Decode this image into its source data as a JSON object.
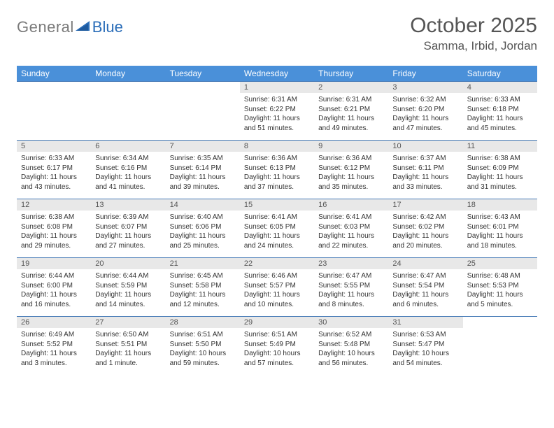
{
  "logo": {
    "word1": "General",
    "word2": "Blue"
  },
  "title": "October 2025",
  "location": "Samma, Irbid, Jordan",
  "colors": {
    "header_bg": "#4a90d9",
    "header_text": "#ffffff",
    "daynum_bg": "#e8e8e8",
    "row_border": "#4a7db8",
    "logo_gray": "#7a7a7a",
    "logo_blue": "#2a6db8"
  },
  "day_headers": [
    "Sunday",
    "Monday",
    "Tuesday",
    "Wednesday",
    "Thursday",
    "Friday",
    "Saturday"
  ],
  "weeks": [
    [
      {
        "n": "",
        "lines": []
      },
      {
        "n": "",
        "lines": []
      },
      {
        "n": "",
        "lines": []
      },
      {
        "n": "1",
        "lines": [
          "Sunrise: 6:31 AM",
          "Sunset: 6:22 PM",
          "Daylight: 11 hours",
          "and 51 minutes."
        ]
      },
      {
        "n": "2",
        "lines": [
          "Sunrise: 6:31 AM",
          "Sunset: 6:21 PM",
          "Daylight: 11 hours",
          "and 49 minutes."
        ]
      },
      {
        "n": "3",
        "lines": [
          "Sunrise: 6:32 AM",
          "Sunset: 6:20 PM",
          "Daylight: 11 hours",
          "and 47 minutes."
        ]
      },
      {
        "n": "4",
        "lines": [
          "Sunrise: 6:33 AM",
          "Sunset: 6:18 PM",
          "Daylight: 11 hours",
          "and 45 minutes."
        ]
      }
    ],
    [
      {
        "n": "5",
        "lines": [
          "Sunrise: 6:33 AM",
          "Sunset: 6:17 PM",
          "Daylight: 11 hours",
          "and 43 minutes."
        ]
      },
      {
        "n": "6",
        "lines": [
          "Sunrise: 6:34 AM",
          "Sunset: 6:16 PM",
          "Daylight: 11 hours",
          "and 41 minutes."
        ]
      },
      {
        "n": "7",
        "lines": [
          "Sunrise: 6:35 AM",
          "Sunset: 6:14 PM",
          "Daylight: 11 hours",
          "and 39 minutes."
        ]
      },
      {
        "n": "8",
        "lines": [
          "Sunrise: 6:36 AM",
          "Sunset: 6:13 PM",
          "Daylight: 11 hours",
          "and 37 minutes."
        ]
      },
      {
        "n": "9",
        "lines": [
          "Sunrise: 6:36 AM",
          "Sunset: 6:12 PM",
          "Daylight: 11 hours",
          "and 35 minutes."
        ]
      },
      {
        "n": "10",
        "lines": [
          "Sunrise: 6:37 AM",
          "Sunset: 6:11 PM",
          "Daylight: 11 hours",
          "and 33 minutes."
        ]
      },
      {
        "n": "11",
        "lines": [
          "Sunrise: 6:38 AM",
          "Sunset: 6:09 PM",
          "Daylight: 11 hours",
          "and 31 minutes."
        ]
      }
    ],
    [
      {
        "n": "12",
        "lines": [
          "Sunrise: 6:38 AM",
          "Sunset: 6:08 PM",
          "Daylight: 11 hours",
          "and 29 minutes."
        ]
      },
      {
        "n": "13",
        "lines": [
          "Sunrise: 6:39 AM",
          "Sunset: 6:07 PM",
          "Daylight: 11 hours",
          "and 27 minutes."
        ]
      },
      {
        "n": "14",
        "lines": [
          "Sunrise: 6:40 AM",
          "Sunset: 6:06 PM",
          "Daylight: 11 hours",
          "and 25 minutes."
        ]
      },
      {
        "n": "15",
        "lines": [
          "Sunrise: 6:41 AM",
          "Sunset: 6:05 PM",
          "Daylight: 11 hours",
          "and 24 minutes."
        ]
      },
      {
        "n": "16",
        "lines": [
          "Sunrise: 6:41 AM",
          "Sunset: 6:03 PM",
          "Daylight: 11 hours",
          "and 22 minutes."
        ]
      },
      {
        "n": "17",
        "lines": [
          "Sunrise: 6:42 AM",
          "Sunset: 6:02 PM",
          "Daylight: 11 hours",
          "and 20 minutes."
        ]
      },
      {
        "n": "18",
        "lines": [
          "Sunrise: 6:43 AM",
          "Sunset: 6:01 PM",
          "Daylight: 11 hours",
          "and 18 minutes."
        ]
      }
    ],
    [
      {
        "n": "19",
        "lines": [
          "Sunrise: 6:44 AM",
          "Sunset: 6:00 PM",
          "Daylight: 11 hours",
          "and 16 minutes."
        ]
      },
      {
        "n": "20",
        "lines": [
          "Sunrise: 6:44 AM",
          "Sunset: 5:59 PM",
          "Daylight: 11 hours",
          "and 14 minutes."
        ]
      },
      {
        "n": "21",
        "lines": [
          "Sunrise: 6:45 AM",
          "Sunset: 5:58 PM",
          "Daylight: 11 hours",
          "and 12 minutes."
        ]
      },
      {
        "n": "22",
        "lines": [
          "Sunrise: 6:46 AM",
          "Sunset: 5:57 PM",
          "Daylight: 11 hours",
          "and 10 minutes."
        ]
      },
      {
        "n": "23",
        "lines": [
          "Sunrise: 6:47 AM",
          "Sunset: 5:55 PM",
          "Daylight: 11 hours",
          "and 8 minutes."
        ]
      },
      {
        "n": "24",
        "lines": [
          "Sunrise: 6:47 AM",
          "Sunset: 5:54 PM",
          "Daylight: 11 hours",
          "and 6 minutes."
        ]
      },
      {
        "n": "25",
        "lines": [
          "Sunrise: 6:48 AM",
          "Sunset: 5:53 PM",
          "Daylight: 11 hours",
          "and 5 minutes."
        ]
      }
    ],
    [
      {
        "n": "26",
        "lines": [
          "Sunrise: 6:49 AM",
          "Sunset: 5:52 PM",
          "Daylight: 11 hours",
          "and 3 minutes."
        ]
      },
      {
        "n": "27",
        "lines": [
          "Sunrise: 6:50 AM",
          "Sunset: 5:51 PM",
          "Daylight: 11 hours",
          "and 1 minute."
        ]
      },
      {
        "n": "28",
        "lines": [
          "Sunrise: 6:51 AM",
          "Sunset: 5:50 PM",
          "Daylight: 10 hours",
          "and 59 minutes."
        ]
      },
      {
        "n": "29",
        "lines": [
          "Sunrise: 6:51 AM",
          "Sunset: 5:49 PM",
          "Daylight: 10 hours",
          "and 57 minutes."
        ]
      },
      {
        "n": "30",
        "lines": [
          "Sunrise: 6:52 AM",
          "Sunset: 5:48 PM",
          "Daylight: 10 hours",
          "and 56 minutes."
        ]
      },
      {
        "n": "31",
        "lines": [
          "Sunrise: 6:53 AM",
          "Sunset: 5:47 PM",
          "Daylight: 10 hours",
          "and 54 minutes."
        ]
      },
      {
        "n": "",
        "lines": []
      }
    ]
  ]
}
